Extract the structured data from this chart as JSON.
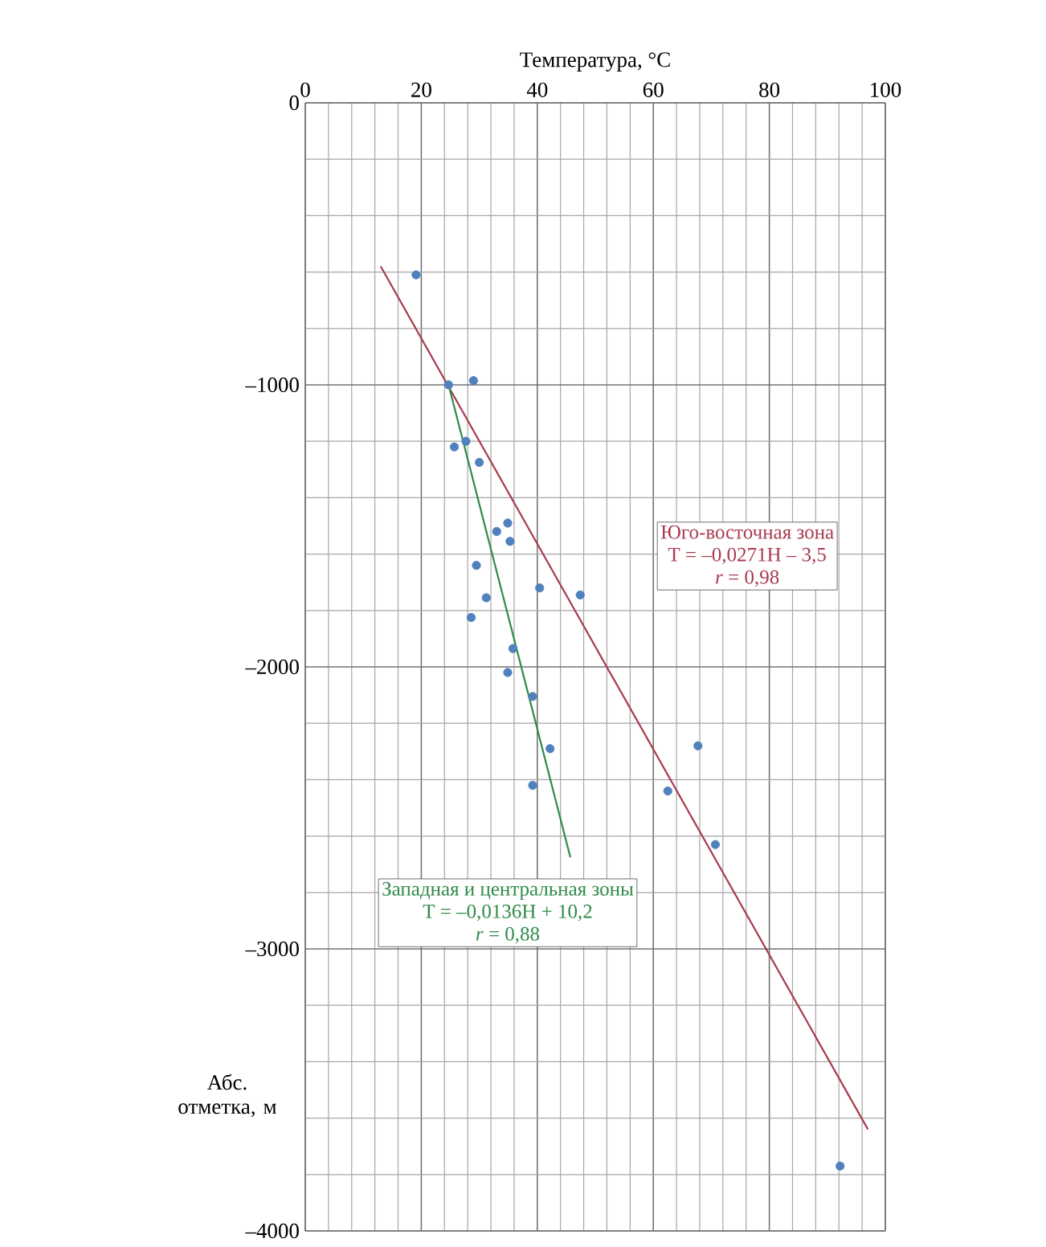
{
  "chart_data": {
    "type": "scatter",
    "xlabel": "Температура, °C",
    "ylabel": "Абс. отметка, м",
    "xlim": [
      0,
      100
    ],
    "xticks": [
      0,
      20,
      40,
      60,
      80,
      100
    ],
    "ylim": [
      -4000,
      0
    ],
    "yticks": [
      0,
      {
        "value": -1000,
        "label": "–1000"
      },
      {
        "value": -2000,
        "label": "–2000"
      },
      {
        "value": -3000,
        "label": "–3000"
      },
      {
        "value": -4000,
        "label": "–4000"
      }
    ],
    "grid": true,
    "x": [
      19.1,
      24.7,
      29.0,
      25.7,
      27.7,
      30.0,
      34.9,
      33.0,
      35.3,
      29.5,
      40.4,
      47.4,
      31.2,
      28.6,
      35.8,
      34.9,
      39.2,
      42.2,
      39.2,
      67.7,
      62.5,
      70.7,
      92.2
    ],
    "series": [
      {
        "marker": "circle",
        "color": "#4f81bd",
        "values": [
          -610,
          -1000,
          -985,
          -1220,
          -1200,
          -1275,
          -1490,
          -1520,
          -1555,
          -1640,
          -1720,
          -1745,
          -1755,
          -1825,
          -1935,
          -2020,
          -2105,
          -2290,
          -2420,
          -2280,
          -2440,
          -2630,
          -3770
        ]
      },
      {
        "type": "line",
        "marker": "none",
        "color": "#a83a4e",
        "x": [
          13,
          97
        ],
        "values": [
          -580,
          -3640
        ]
      },
      {
        "type": "line",
        "marker": "none",
        "color": "#2e8b47",
        "x": [
          24.7,
          45.7
        ],
        "values": [
          -1000,
          -2675
        ]
      }
    ],
    "annotations": [
      "Юго-восточная зона",
      "T = –0,0271H – 3,5",
      "*r* = 0,98",
      "Западная и центральная зоны",
      "T = –0,0136H + 10,2",
      "*r* = 0,88"
    ]
  }
}
